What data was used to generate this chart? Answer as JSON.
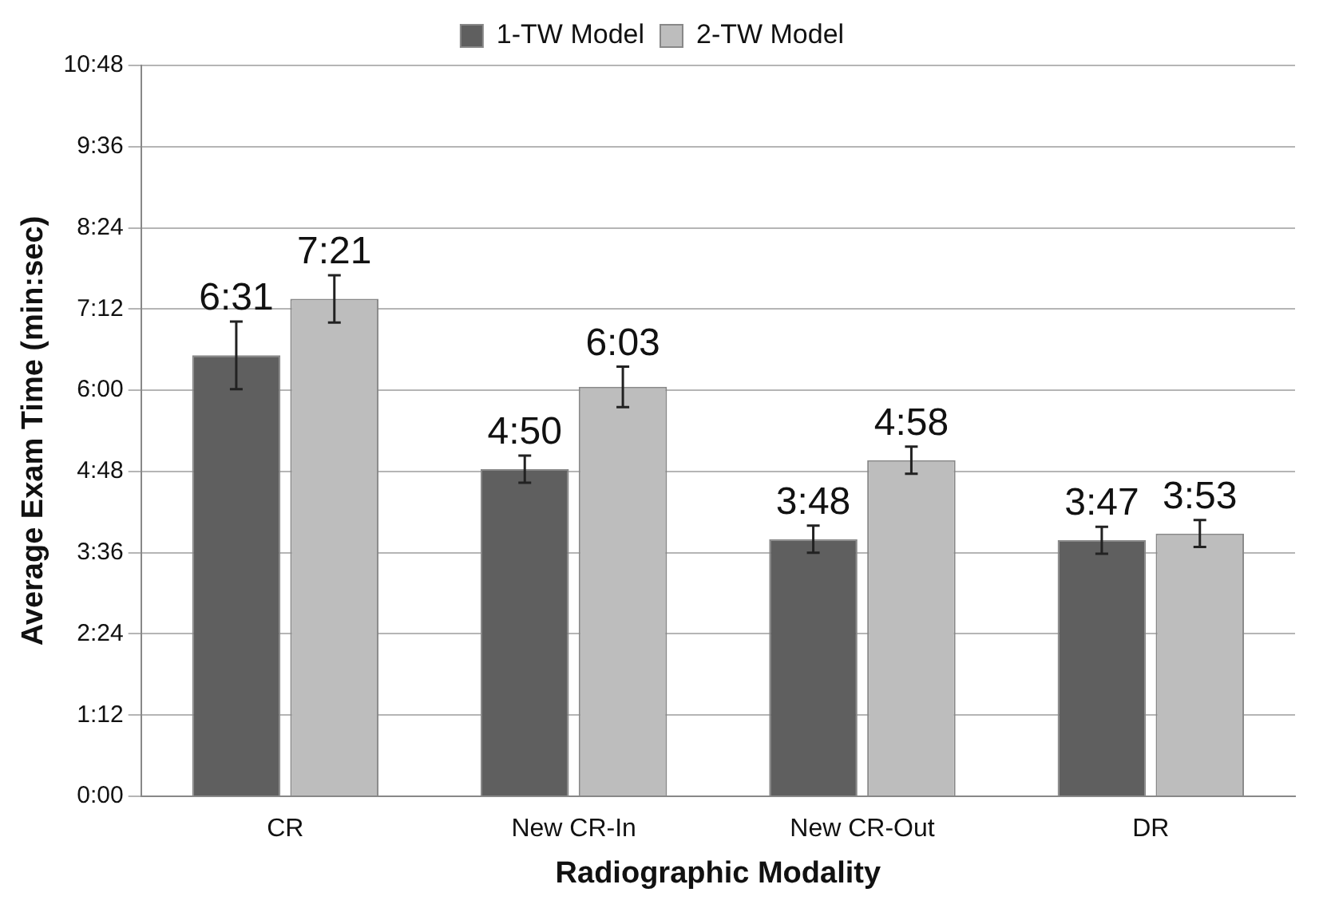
{
  "chart_data": {
    "type": "bar",
    "xlabel": "Radiographic Modality",
    "ylabel": "Average Exam Time (min:sec)",
    "categories": [
      "CR",
      "New CR-In",
      "New CR-Out",
      "DR"
    ],
    "series": [
      {
        "name": "1-TW Model",
        "color": "#5f5f5f",
        "values": [
          6.5167,
          4.8333,
          3.8,
          3.7833
        ],
        "errors": [
          0.5,
          0.2,
          0.2,
          0.2
        ],
        "value_labels": [
          "6:31",
          "4:50",
          "3:48",
          "3:47"
        ]
      },
      {
        "name": "2-TW Model",
        "color": "#bdbdbd",
        "values": [
          7.35,
          6.05,
          4.9667,
          3.8833
        ],
        "errors": [
          0.35,
          0.3,
          0.2,
          0.2
        ],
        "value_labels": [
          "7:21",
          "6:03",
          "4:58",
          "3:53"
        ]
      }
    ],
    "ylim": [
      0,
      10.8
    ],
    "yticks": [
      {
        "value": 0,
        "label": "0:00"
      },
      {
        "value": 1.2,
        "label": "1:12"
      },
      {
        "value": 2.4,
        "label": "2:24"
      },
      {
        "value": 3.6,
        "label": "3:36"
      },
      {
        "value": 4.8,
        "label": "4:48"
      },
      {
        "value": 6,
        "label": "6:00"
      },
      {
        "value": 7.2,
        "label": "7:12"
      },
      {
        "value": 8.4,
        "label": "8:24"
      },
      {
        "value": 9.6,
        "label": "9:36"
      },
      {
        "value": 10.8,
        "label": "10:48"
      }
    ],
    "grid": "y",
    "legend": "top"
  }
}
